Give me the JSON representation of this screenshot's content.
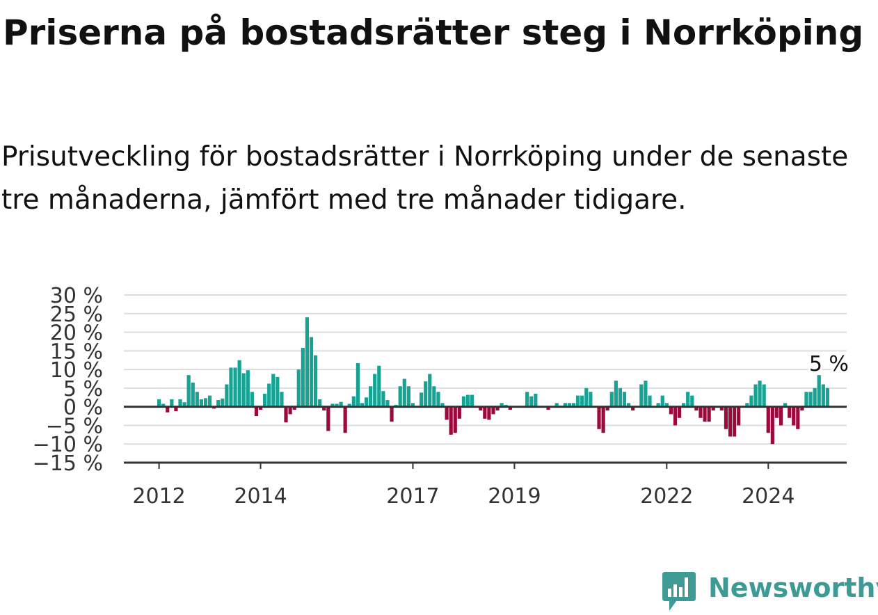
{
  "header": {
    "title": "Priserna på bostadsrätter steg i Norrköping",
    "subtitle": "Prisutveckling för bostadsrätter i Norrköping under de senaste tre månaderna, jämfört med tre månader tidigare."
  },
  "brand": {
    "name": "Newsworthy",
    "icon": "newsworthy-logo-icon",
    "color": "#3e9a95"
  },
  "chart_data": {
    "type": "bar",
    "title": "",
    "xlabel": "",
    "ylabel": "",
    "ylim": [
      -15,
      30
    ],
    "y_ticks": [
      {
        "value": 30,
        "label": "30 %"
      },
      {
        "value": 25,
        "label": "25 %"
      },
      {
        "value": 20,
        "label": "20 %"
      },
      {
        "value": 15,
        "label": "15 %"
      },
      {
        "value": 10,
        "label": "10 %"
      },
      {
        "value": 5,
        "label": "5 %"
      },
      {
        "value": 0,
        "label": "0 %"
      },
      {
        "value": -5,
        "label": "−5 %"
      },
      {
        "value": -10,
        "label": "−10 %"
      },
      {
        "value": -15,
        "label": "−15 %"
      }
    ],
    "x_ticks": [
      "2012",
      "2014",
      "2017",
      "2019",
      "2022",
      "2024"
    ],
    "start_year": 2012,
    "grid": true,
    "legend": "none",
    "colors": {
      "positive": "#16a394",
      "negative": "#9b0a3d",
      "grid": "#dddddd",
      "axis": "#333333"
    },
    "annotation": {
      "label": "5 %",
      "value": 5
    },
    "values": [
      2,
      0.8,
      -1.5,
      2,
      -1.2,
      2,
      1.2,
      8.5,
      6.5,
      4,
      2,
      2.3,
      3,
      -0.5,
      1.8,
      2.2,
      6,
      10.5,
      10.5,
      12.5,
      9,
      9.8,
      4,
      -2.5,
      -0.8,
      3.5,
      6.2,
      8.8,
      8,
      4,
      -4.2,
      -2,
      -0.8,
      10,
      15.8,
      24,
      18.7,
      13.8,
      2,
      -1,
      -6.5,
      0.8,
      0.8,
      1.3,
      -7,
      0.8,
      2.8,
      11.7,
      1,
      2.5,
      5.5,
      8.8,
      11,
      4.2,
      1.8,
      -4,
      0.5,
      5.5,
      7.5,
      5.5,
      1,
      0,
      3.8,
      6.8,
      8.8,
      5.5,
      4,
      1,
      -3.5,
      -7.5,
      -7,
      -3.2,
      2.8,
      3.2,
      3.2,
      0,
      -1,
      -3.2,
      -3.5,
      -2,
      -1,
      1,
      0.5,
      -0.8,
      0,
      0,
      0,
      4,
      2.8,
      3.5,
      0,
      0,
      -0.8,
      0,
      1,
      0.3,
      1,
      1,
      1,
      3,
      3,
      5,
      4,
      0,
      -6,
      -7,
      -1,
      4,
      7,
      5,
      4,
      1,
      -1,
      0,
      6,
      7,
      3,
      0,
      1,
      3,
      1,
      -2,
      -5,
      -3,
      1,
      4,
      3,
      -1,
      -3,
      -4,
      -4,
      -1,
      0,
      -1,
      -6,
      -8,
      -8,
      -5,
      0,
      1,
      3,
      6,
      7,
      6,
      -7,
      -10,
      -3,
      -5,
      1,
      -3,
      -5,
      -6,
      -1,
      4,
      4,
      5,
      8.5,
      6,
      5
    ]
  }
}
